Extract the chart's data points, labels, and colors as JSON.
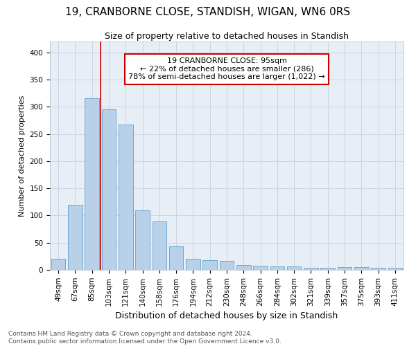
{
  "title": "19, CRANBORNE CLOSE, STANDISH, WIGAN, WN6 0RS",
  "subtitle": "Size of property relative to detached houses in Standish",
  "xlabel": "Distribution of detached houses by size in Standish",
  "ylabel": "Number of detached properties",
  "footer_line1": "Contains HM Land Registry data © Crown copyright and database right 2024.",
  "footer_line2": "Contains public sector information licensed under the Open Government Licence v3.0.",
  "categories": [
    "49sqm",
    "67sqm",
    "85sqm",
    "103sqm",
    "121sqm",
    "140sqm",
    "158sqm",
    "176sqm",
    "194sqm",
    "212sqm",
    "230sqm",
    "248sqm",
    "266sqm",
    "284sqm",
    "302sqm",
    "321sqm",
    "339sqm",
    "357sqm",
    "375sqm",
    "393sqm",
    "411sqm"
  ],
  "values": [
    20,
    120,
    315,
    295,
    267,
    109,
    89,
    43,
    21,
    18,
    16,
    9,
    8,
    7,
    6,
    4,
    4,
    5,
    5,
    4,
    4
  ],
  "bar_color": "#b8d0e8",
  "bar_edge_color": "#6aaad4",
  "annotation_title": "19 CRANBORNE CLOSE: 95sqm",
  "annotation_line1": "← 22% of detached houses are smaller (286)",
  "annotation_line2": "78% of semi-detached houses are larger (1,022) →",
  "annotation_box_color": "#cc0000",
  "grid_color": "#c8d0dc",
  "bg_color": "#e8eef5",
  "ylim": [
    0,
    420
  ],
  "yticks": [
    0,
    50,
    100,
    150,
    200,
    250,
    300,
    350,
    400
  ],
  "line_x_index": 2.5,
  "title_fontsize": 11,
  "subtitle_fontsize": 9,
  "xlabel_fontsize": 9,
  "ylabel_fontsize": 8,
  "tick_fontsize": 7.5,
  "footer_fontsize": 6.5,
  "annotation_fontsize": 8
}
